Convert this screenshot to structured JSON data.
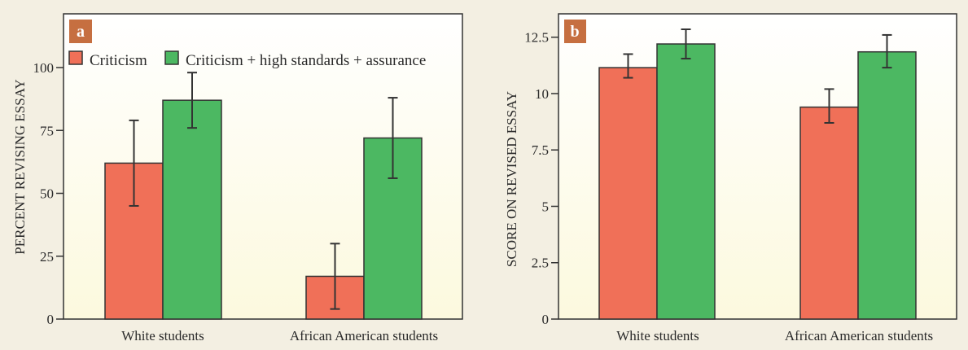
{
  "colors": {
    "criticism": "#f07058",
    "criticism_plus": "#4cb862",
    "panel_label_bg": "#c66f40",
    "background": "#f3efe2",
    "frame": "#333333"
  },
  "legend": [
    "Criticism",
    "Criticism + high standards + assurance"
  ],
  "chart_data": [
    {
      "type": "bar",
      "panel_label": "a",
      "title": "",
      "xlabel": "",
      "ylabel": "PERCENT REVISING ESSAY",
      "categories": [
        "White students",
        "African American students"
      ],
      "ylim": [
        0,
        120
      ],
      "yticks": [
        0,
        25,
        50,
        75,
        100
      ],
      "ytick_labels": [
        "0",
        "25",
        "50",
        "75",
        "100"
      ],
      "legend_position": "top-left",
      "grid": false,
      "series": [
        {
          "name": "Criticism",
          "values": [
            62,
            17
          ],
          "err_low": [
            45,
            4
          ],
          "err_high": [
            79,
            30
          ]
        },
        {
          "name": "Criticism + high standards + assurance",
          "values": [
            87,
            72
          ],
          "err_low": [
            76,
            56
          ],
          "err_high": [
            98,
            88
          ]
        }
      ]
    },
    {
      "type": "bar",
      "panel_label": "b",
      "title": "",
      "xlabel": "",
      "ylabel": "SCORE ON REVISED ESSAY",
      "categories": [
        "White students",
        "African American students"
      ],
      "ylim": [
        0,
        13.5
      ],
      "yticks": [
        0,
        2.5,
        5,
        7.5,
        10,
        12.5
      ],
      "ytick_labels": [
        "0",
        "2.5",
        "5",
        "7.5",
        "10",
        "12.5"
      ],
      "grid": false,
      "series": [
        {
          "name": "Criticism",
          "values": [
            11.15,
            9.4
          ],
          "err_low": [
            10.7,
            8.7
          ],
          "err_high": [
            11.75,
            10.2
          ]
        },
        {
          "name": "Criticism + high standards + assurance",
          "values": [
            12.2,
            11.85
          ],
          "err_low": [
            11.55,
            11.15
          ],
          "err_high": [
            12.85,
            12.6
          ]
        }
      ]
    }
  ]
}
